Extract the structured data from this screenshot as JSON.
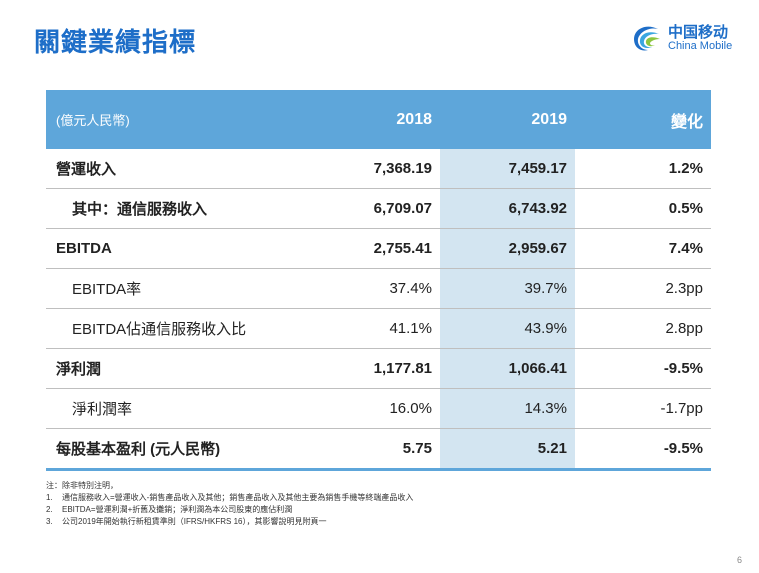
{
  "header": {
    "title": "關鍵業績指標"
  },
  "logo": {
    "cn": "中国移动",
    "en": "China Mobile"
  },
  "table": {
    "columns": [
      "(億元人民幣)",
      "2018",
      "2019",
      "變化"
    ],
    "rows": [
      {
        "label": "營運收入",
        "v2018": "7,368.19",
        "v2019": "7,459.17",
        "change": "1.2%"
      },
      {
        "label": "其中：通信服務收入",
        "v2018": "6,709.07",
        "v2019": "6,743.92",
        "change": "0.5%"
      },
      {
        "label": "EBITDA",
        "v2018": "2,755.41",
        "v2019": "2,959.67",
        "change": "7.4%"
      },
      {
        "label": "EBITDA率",
        "v2018": "37.4%",
        "v2019": "39.7%",
        "change": "2.3pp"
      },
      {
        "label": "EBITDA佔通信服務收入比",
        "v2018": "41.1%",
        "v2019": "43.9%",
        "change": "2.8pp"
      },
      {
        "label": "淨利潤",
        "v2018": "1,177.81",
        "v2019": "1,066.41",
        "change": "-9.5%"
      },
      {
        "label": "淨利潤率",
        "v2018": "16.0%",
        "v2019": "14.3%",
        "change": "-1.7pp"
      },
      {
        "label": "每股基本盈利 (元人民幣)",
        "v2018": "5.75",
        "v2019": "5.21",
        "change": "-9.5%"
      }
    ]
  },
  "notes": {
    "intro": "注：除非特別注明，",
    "items": [
      {
        "num": "1.",
        "text": "通信服務收入=營運收入-銷售產品收入及其他；銷售產品收入及其他主要為銷售手機等終端產品收入"
      },
      {
        "num": "2.",
        "text": "EBITDA=營運利潤+折舊及攤銷；淨利潤為本公司股東的應佔利潤"
      },
      {
        "num": "3.",
        "text": "公司2019年開始執行新租賃準則（IFRS/HKFRS 16），其影響說明見附頁一"
      }
    ]
  },
  "page_number": "6",
  "colors": {
    "title": "#1e6ec8",
    "header_bg": "#5ea6da",
    "highlight_col": "#d3e5f1"
  }
}
